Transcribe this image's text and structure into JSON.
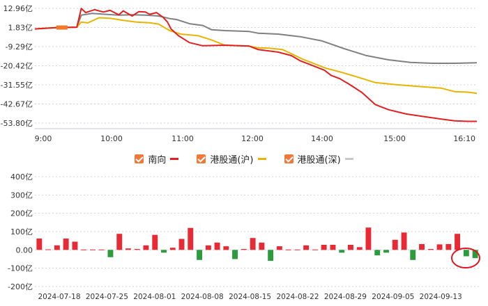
{
  "chart_data": [
    {
      "type": "line",
      "title": "",
      "x_ticks": [
        "9:00",
        "10:00",
        "11:00",
        "12:00",
        "14:00",
        "15:00",
        "16:10"
      ],
      "y_ticks": [
        "12.96亿",
        "1.83亿",
        "-9.29亿",
        "-20.42亿",
        "-31.55亿",
        "-42.67亿",
        "-53.80亿"
      ],
      "ylim": [
        -53.8,
        12.96
      ],
      "grid": true,
      "legend_position": "bottom-center",
      "series": [
        {
          "name": "南向",
          "color": "#e02020",
          "values": [
            [
              0.0,
              1.0
            ],
            [
              0.5,
              1.8
            ],
            [
              0.95,
              2.0
            ],
            [
              1.05,
              12.9
            ],
            [
              1.15,
              10.5
            ],
            [
              1.35,
              12.2
            ],
            [
              1.55,
              10.8
            ],
            [
              1.7,
              11.8
            ],
            [
              1.9,
              9.2
            ],
            [
              2.0,
              11.5
            ],
            [
              2.2,
              8.5
            ],
            [
              2.35,
              11.0
            ],
            [
              2.5,
              10.8
            ],
            [
              2.6,
              9.5
            ],
            [
              2.75,
              10.5
            ],
            [
              2.9,
              7.8
            ],
            [
              3.0,
              5.0
            ],
            [
              3.08,
              1.0
            ],
            [
              3.25,
              -3.0
            ],
            [
              3.5,
              -7.0
            ],
            [
              3.8,
              -8.8
            ],
            [
              4.3,
              -8.5
            ],
            [
              4.85,
              -9.0
            ],
            [
              5.05,
              -11.0
            ],
            [
              5.5,
              -12.5
            ],
            [
              5.8,
              -14.5
            ],
            [
              6.0,
              -17.5
            ],
            [
              6.2,
              -19.5
            ],
            [
              6.4,
              -21.5
            ],
            [
              6.55,
              -23.0
            ],
            [
              6.7,
              -26.0
            ],
            [
              6.9,
              -28.0
            ],
            [
              7.1,
              -31.0
            ],
            [
              7.4,
              -36.0
            ],
            [
              7.7,
              -43.0
            ],
            [
              8.0,
              -46.0
            ],
            [
              8.4,
              -48.5
            ],
            [
              8.8,
              -50.0
            ],
            [
              9.2,
              -51.5
            ],
            [
              9.5,
              -52.5
            ],
            [
              9.8,
              -52.8
            ],
            [
              10.0,
              -52.8
            ]
          ]
        },
        {
          "name": "港股通(沪)",
          "color": "#e8b400",
          "values": [
            [
              0.0,
              1.0
            ],
            [
              0.5,
              1.8
            ],
            [
              0.95,
              2.0
            ],
            [
              1.05,
              5.0
            ],
            [
              1.2,
              4.5
            ],
            [
              1.45,
              7.5
            ],
            [
              1.7,
              7.2
            ],
            [
              2.0,
              6.0
            ],
            [
              2.3,
              5.0
            ],
            [
              2.6,
              4.6
            ],
            [
              2.8,
              3.8
            ],
            [
              3.05,
              0.0
            ],
            [
              3.3,
              -2.0
            ],
            [
              3.7,
              -3.0
            ],
            [
              4.0,
              -5.5
            ],
            [
              4.3,
              -8.5
            ],
            [
              4.85,
              -9.0
            ],
            [
              5.05,
              -10.0
            ],
            [
              5.3,
              -10.2
            ],
            [
              5.6,
              -11.0
            ],
            [
              5.85,
              -14.0
            ],
            [
              6.05,
              -16.5
            ],
            [
              6.3,
              -19.0
            ],
            [
              6.6,
              -22.0
            ],
            [
              6.9,
              -24.0
            ],
            [
              7.3,
              -27.0
            ],
            [
              7.7,
              -30.2
            ],
            [
              8.2,
              -31.5
            ],
            [
              8.7,
              -32.5
            ],
            [
              9.2,
              -33.5
            ],
            [
              9.5,
              -35.5
            ],
            [
              9.8,
              -35.8
            ],
            [
              10.0,
              -36.5
            ]
          ]
        },
        {
          "name": "港股通(深)",
          "color": "#808080",
          "values": [
            [
              0.0,
              1.0
            ],
            [
              0.5,
              1.8
            ],
            [
              0.95,
              2.0
            ],
            [
              1.05,
              9.0
            ],
            [
              1.3,
              10.0
            ],
            [
              1.6,
              9.5
            ],
            [
              1.9,
              9.0
            ],
            [
              2.2,
              9.2
            ],
            [
              2.5,
              9.0
            ],
            [
              2.8,
              8.5
            ],
            [
              3.05,
              7.0
            ],
            [
              3.2,
              6.5
            ],
            [
              3.5,
              4.0
            ],
            [
              3.8,
              3.0
            ],
            [
              4.0,
              0.5
            ],
            [
              4.3,
              0.0
            ],
            [
              4.85,
              -0.5
            ],
            [
              5.05,
              -1.5
            ],
            [
              5.5,
              -2.0
            ],
            [
              6.0,
              -3.5
            ],
            [
              6.5,
              -6.0
            ],
            [
              7.0,
              -10.5
            ],
            [
              7.5,
              -14.5
            ],
            [
              8.0,
              -17.0
            ],
            [
              8.5,
              -18.5
            ],
            [
              9.0,
              -19.0
            ],
            [
              9.5,
              -19.0
            ],
            [
              10.0,
              -18.7
            ]
          ]
        }
      ]
    },
    {
      "type": "bar",
      "title": "",
      "x_ticks": [
        "2024-07-18",
        "2024-07-25",
        "2024-08-01",
        "2024-08-08",
        "2024-08-15",
        "2024-08-22",
        "2024-08-29",
        "2024-09-05",
        "2024-09-13"
      ],
      "y_ticks": [
        "400亿",
        "300亿",
        "200亿",
        "100亿",
        "0.00",
        "-100亿",
        "-200亿"
      ],
      "ylim": [
        -200,
        400
      ],
      "grid": true,
      "positive_color": "#e82a35",
      "negative_color": "#2e9a3e",
      "values": [
        62,
        3,
        25,
        62,
        45,
        2,
        2,
        2,
        -40,
        88,
        8,
        5,
        25,
        82,
        -15,
        12,
        60,
        120,
        -55,
        25,
        40,
        20,
        -50,
        5,
        65,
        40,
        -60,
        20,
        2,
        2,
        25,
        2,
        28,
        28,
        -15,
        28,
        15,
        122,
        -30,
        -15,
        55,
        95,
        -55,
        32,
        5,
        30,
        32,
        88,
        -35,
        -45
      ]
    }
  ]
}
